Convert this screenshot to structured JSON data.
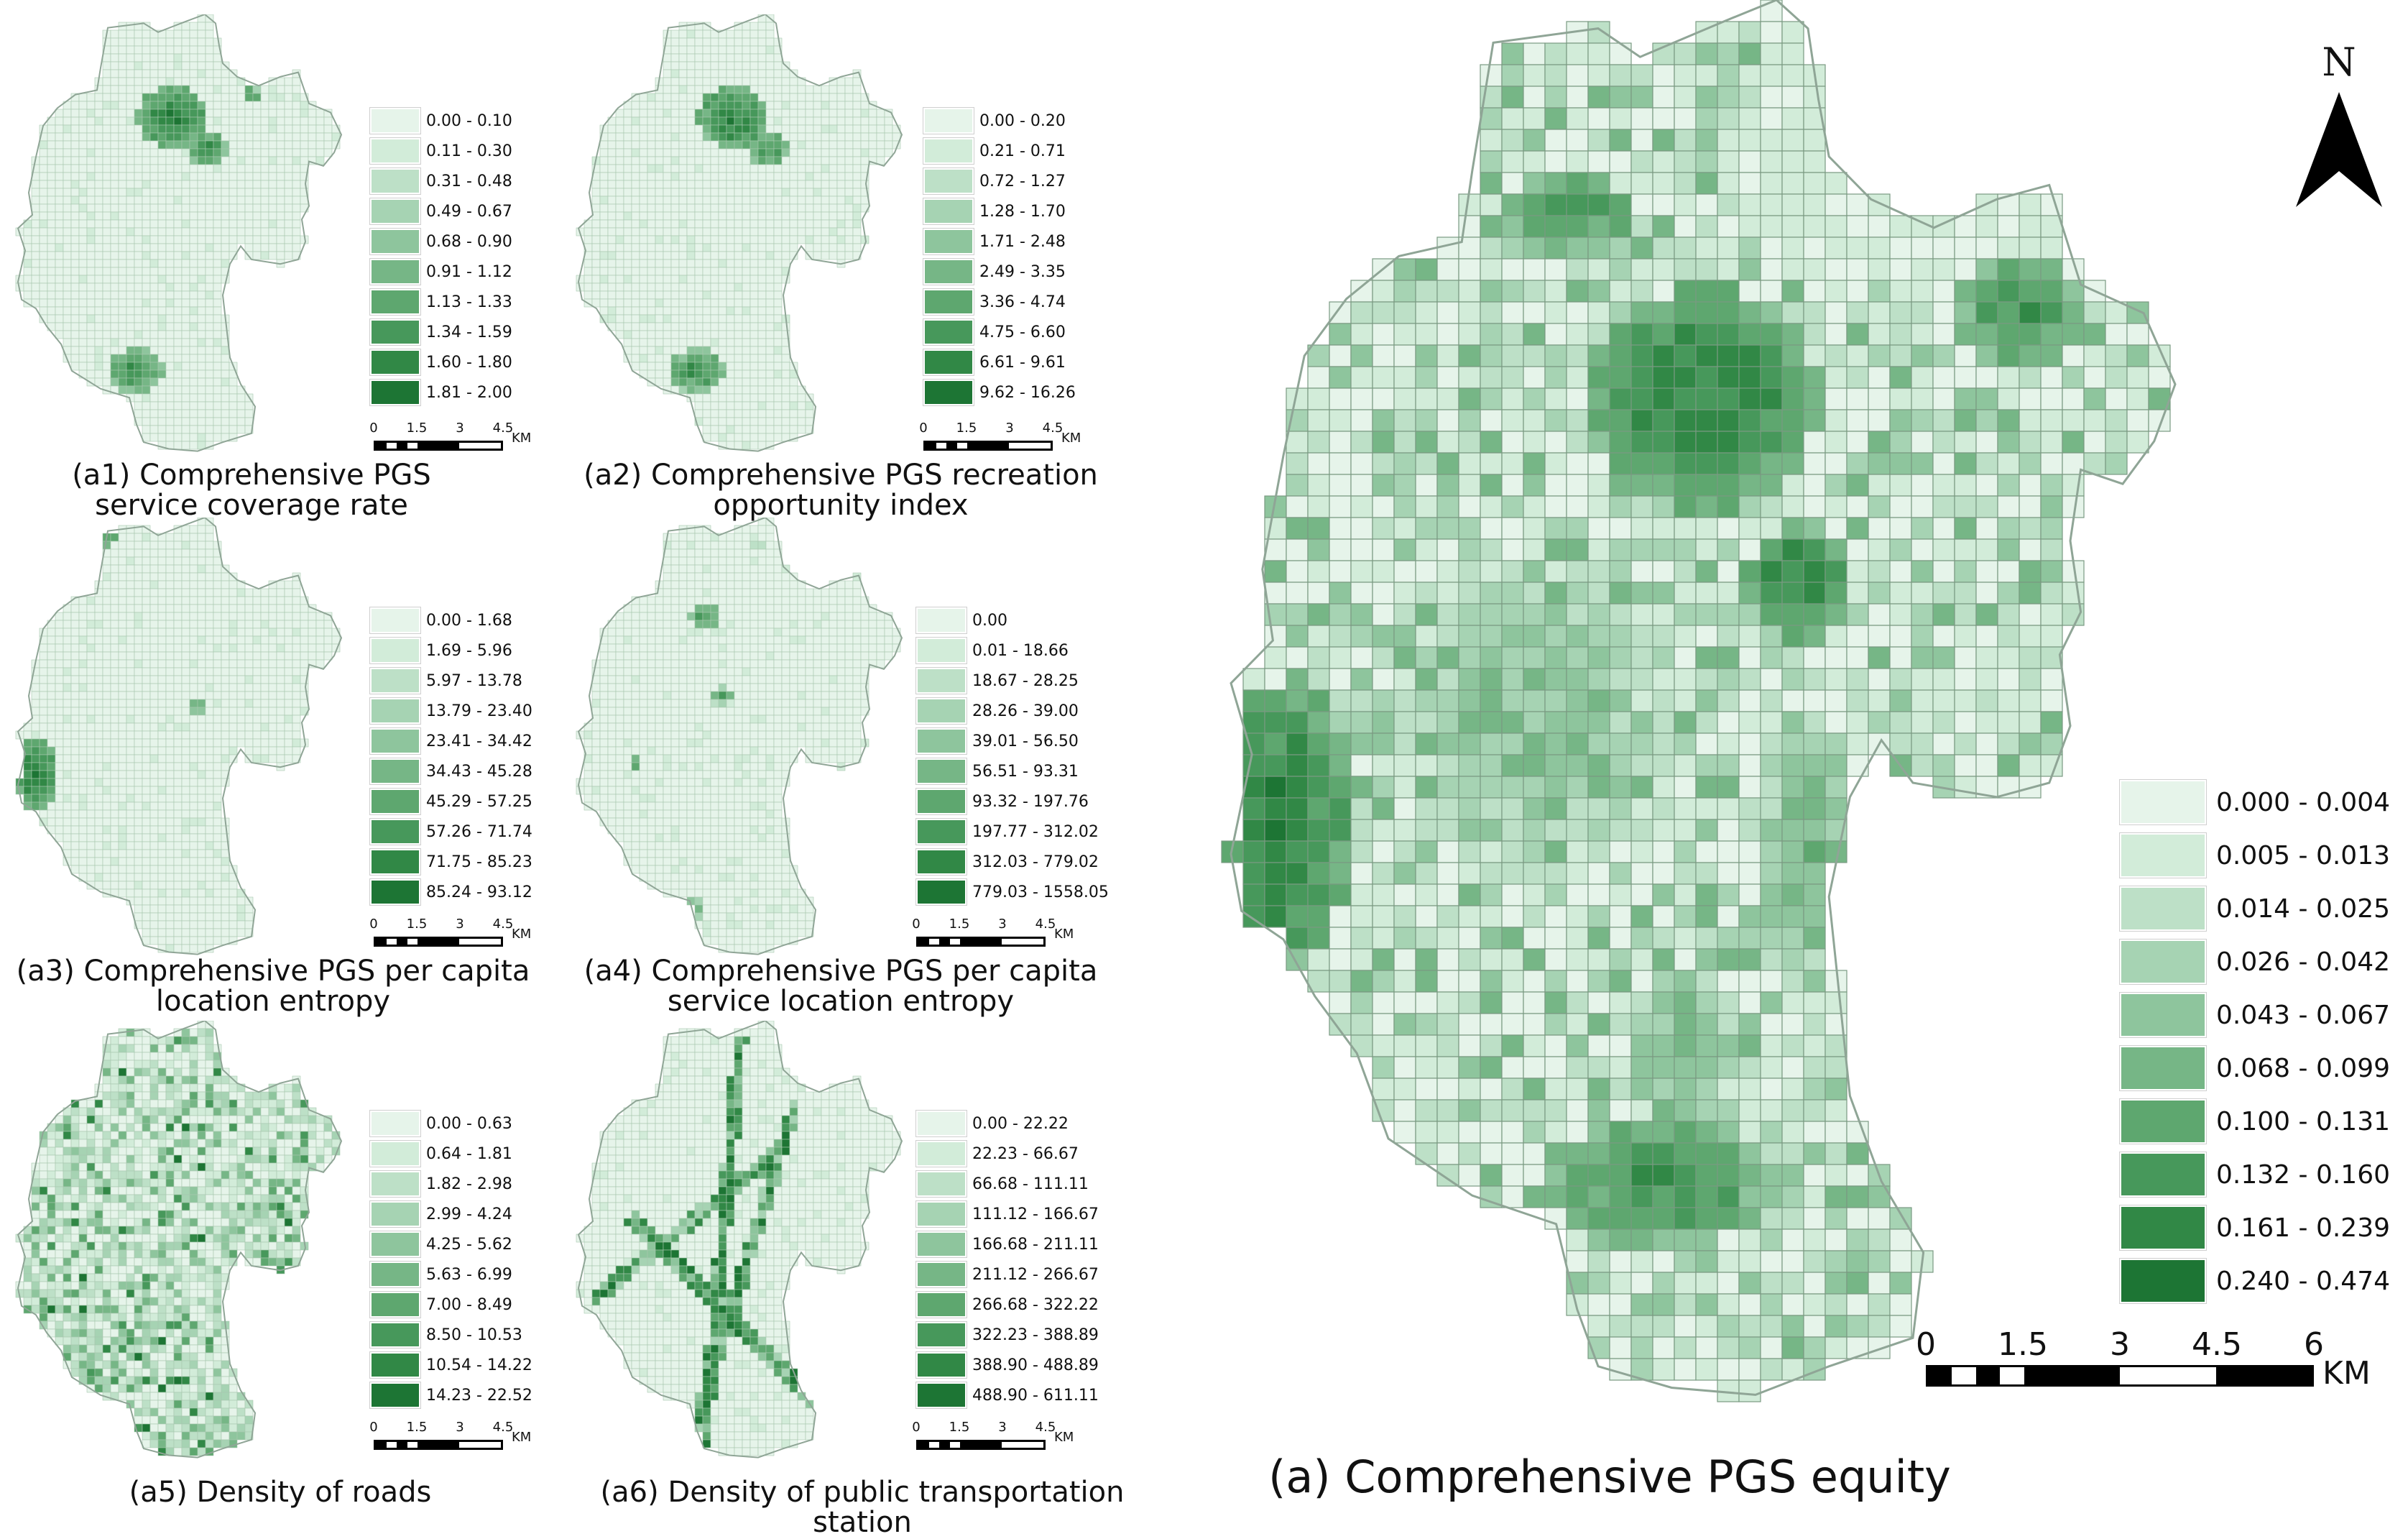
{
  "palette": [
    "#e6f4ea",
    "#d2ecd9",
    "#bde0c7",
    "#a6d3b3",
    "#8ec59d",
    "#76b686",
    "#5ea76f",
    "#47985b",
    "#318846",
    "#1d7534"
  ],
  "panels": [
    {
      "id": "a1",
      "caption": "(a1)  Comprehensive PGS\nservice coverage rate",
      "classes": [
        "0.00 - 0.10",
        "0.11 - 0.30",
        "0.31 - 0.48",
        "0.49 - 0.67",
        "0.68 - 0.90",
        "0.91 - 1.12",
        "1.13 - 1.33",
        "1.34 - 1.59",
        "1.60 - 1.80",
        "1.81 - 2.00"
      ],
      "scale_ticks": [
        "0",
        "1.5",
        "3",
        "4.5"
      ],
      "scale_unit": "KM"
    },
    {
      "id": "a2",
      "caption": "(a2)  Comprehensive PGS recreation\nopportunity index",
      "classes": [
        "0.00 - 0.20",
        "0.21 - 0.71",
        "0.72 - 1.27",
        "1.28 - 1.70",
        "1.71 - 2.48",
        "2.49 - 3.35",
        "3.36 - 4.74",
        "4.75 - 6.60",
        "6.61 - 9.61",
        "9.62 - 16.26"
      ],
      "scale_ticks": [
        "0",
        "1.5",
        "3",
        "4.5"
      ],
      "scale_unit": "KM"
    },
    {
      "id": "a3",
      "caption": "(a3)  Comprehensive PGS per capita\nlocation entropy",
      "classes": [
        "0.00 - 1.68",
        "1.69 - 5.96",
        "5.97 - 13.78",
        "13.79 - 23.40",
        "23.41 - 34.42",
        "34.43 - 45.28",
        "45.29 - 57.25",
        "57.26 - 71.74",
        "71.75 - 85.23",
        "85.24 - 93.12"
      ],
      "scale_ticks": [
        "0",
        "1.5",
        "3",
        "4.5"
      ],
      "scale_unit": "KM"
    },
    {
      "id": "a4",
      "caption": "(a4)  Comprehensive PGS per capita\nservice location entropy",
      "classes": [
        "0.00",
        "0.01 - 18.66",
        "18.67 - 28.25",
        "28.26 - 39.00",
        "39.01 - 56.50",
        "56.51 - 93.31",
        "93.32 - 197.76",
        "197.77 - 312.02",
        "312.03 - 779.02",
        "779.03 - 1558.05"
      ],
      "scale_ticks": [
        "0",
        "1.5",
        "3",
        "4.5"
      ],
      "scale_unit": "KM"
    },
    {
      "id": "a5",
      "caption": "(a5)  Density of roads",
      "classes": [
        "0.00 - 0.63",
        "0.64 - 1.81",
        "1.82 - 2.98",
        "2.99 - 4.24",
        "4.25 - 5.62",
        "5.63 - 6.99",
        "7.00 - 8.49",
        "8.50 - 10.53",
        "10.54 - 14.22",
        "14.23 - 22.52"
      ],
      "scale_ticks": [
        "0",
        "1.5",
        "3",
        "4.5"
      ],
      "scale_unit": "KM"
    },
    {
      "id": "a6",
      "caption": "(a6)  Density of public transportation station",
      "classes": [
        "0.00 - 22.22",
        "22.23 - 66.67",
        "66.68 - 111.11",
        "111.12 - 166.67",
        "166.68 - 211.11",
        "211.12 - 266.67",
        "266.68 - 322.22",
        "322.23 - 388.89",
        "388.90 - 488.89",
        "488.90 - 611.11"
      ],
      "scale_ticks": [
        "0",
        "1.5",
        "3",
        "4.5"
      ],
      "scale_unit": "KM"
    }
  ],
  "main": {
    "id": "a",
    "caption": "(a)  Comprehensive PGS equity",
    "classes": [
      "0.000 - 0.004",
      "0.005 - 0.013",
      "0.014 - 0.025",
      "0.026 - 0.042",
      "0.043 - 0.067",
      "0.068 - 0.099",
      "0.100 - 0.131",
      "0.132 - 0.160",
      "0.161 - 0.239",
      "0.240 - 0.474"
    ],
    "scale_ticks": [
      "0",
      "1.5",
      "3",
      "4.5",
      "6"
    ],
    "scale_unit": "KM",
    "north_label": "N"
  }
}
